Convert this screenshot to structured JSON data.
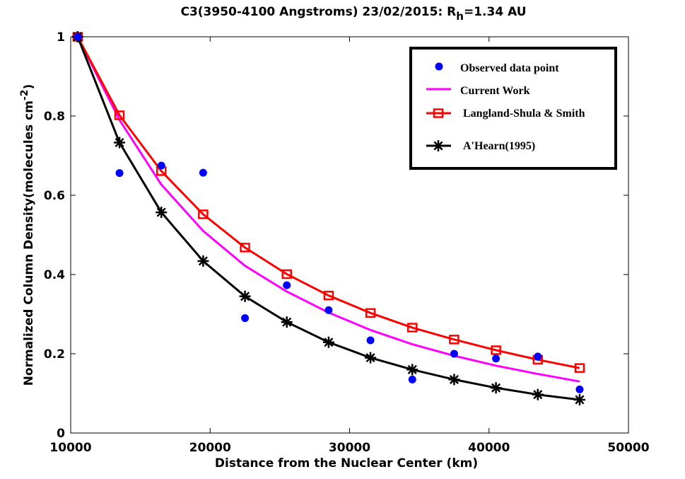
{
  "chart_data": {
    "type": "line",
    "title": "C3(3950-4100 Angstroms) 23/02/2015: R",
    "title_sub": "h",
    "title_tail": "=1.34 AU",
    "xlabel": "Distance from the Nuclear Center (km)",
    "ylabel": "Normalized Column Density(molecules cm",
    "ylabel_sup": "-2",
    "ylabel_tail": ")",
    "xlim": [
      10000,
      50000
    ],
    "ylim": [
      0,
      1
    ],
    "xticks": [
      10000,
      20000,
      30000,
      40000,
      50000
    ],
    "yticks": [
      0,
      0.2,
      0.4,
      0.6,
      0.8,
      1
    ],
    "xtick_labels": [
      "10000",
      "20000",
      "30000",
      "40000",
      "50000"
    ],
    "ytick_labels": [
      "0",
      "0.2",
      "0.4",
      "0.6",
      "0.8",
      "1"
    ],
    "legend_position": "top-right",
    "series": [
      {
        "name": "Observed data point",
        "kind": "scatter-dot",
        "color": "#0000ff",
        "x": [
          10500,
          13500,
          16500,
          19500,
          22500,
          25500,
          28500,
          31500,
          34500,
          37500,
          40500,
          43500,
          46500
        ],
        "y": [
          1.0,
          0.656,
          0.675,
          0.657,
          0.29,
          0.373,
          0.31,
          0.234,
          0.135,
          0.2,
          0.188,
          0.193,
          0.11
        ]
      },
      {
        "name": "Current Work",
        "kind": "line",
        "color": "#ff00ff",
        "x": [
          10500,
          13500,
          16500,
          19500,
          22500,
          25500,
          28500,
          31500,
          34500,
          37500,
          40500,
          43500,
          46500
        ],
        "y": [
          1.0,
          0.79,
          0.627,
          0.51,
          0.422,
          0.357,
          0.304,
          0.26,
          0.224,
          0.195,
          0.17,
          0.149,
          0.13
        ]
      },
      {
        "name": "Langland-Shula & Smith",
        "kind": "line-square",
        "color": "#ff0000",
        "x": [
          10500,
          13500,
          16500,
          19500,
          22500,
          25500,
          28500,
          31500,
          34500,
          37500,
          40500,
          43500,
          46500
        ],
        "y": [
          1.0,
          0.802,
          0.661,
          0.552,
          0.468,
          0.401,
          0.347,
          0.303,
          0.266,
          0.236,
          0.209,
          0.185,
          0.164
        ]
      },
      {
        "name": "A'Hearn(1995)",
        "kind": "line-star",
        "color": "#000000",
        "x": [
          10500,
          13500,
          16500,
          19500,
          22500,
          25500,
          28500,
          31500,
          34500,
          37500,
          40500,
          43500,
          46500
        ],
        "y": [
          1.0,
          0.733,
          0.557,
          0.434,
          0.345,
          0.28,
          0.229,
          0.19,
          0.16,
          0.135,
          0.114,
          0.097,
          0.084
        ]
      }
    ]
  }
}
